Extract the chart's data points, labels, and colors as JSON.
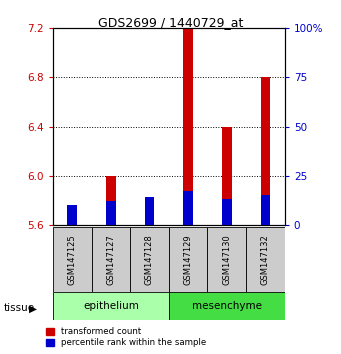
{
  "title": "GDS2699 / 1440729_at",
  "samples": [
    "GSM147125",
    "GSM147127",
    "GSM147128",
    "GSM147129",
    "GSM147130",
    "GSM147132"
  ],
  "transformed_counts": [
    5.69,
    6.0,
    5.72,
    7.2,
    6.4,
    6.8
  ],
  "percentile_ranks": [
    10,
    12,
    14,
    17,
    13,
    15
  ],
  "baseline": 5.6,
  "ylim_left": [
    5.6,
    7.2
  ],
  "ylim_right": [
    0,
    100
  ],
  "yticks_left": [
    5.6,
    6.0,
    6.4,
    6.8,
    7.2
  ],
  "yticks_right": [
    0,
    25,
    50,
    75,
    100
  ],
  "groups": {
    "epithelium": [
      0,
      1,
      2
    ],
    "mesenchyme": [
      3,
      4,
      5
    ]
  },
  "group_color_epi": "#aaffaa",
  "group_color_mes": "#44dd44",
  "bar_color_red": "#cc0000",
  "bar_color_blue": "#0000cc",
  "left_tick_color": "#cc0000",
  "right_tick_color": "#0000cc",
  "gray_color": "#cccccc",
  "bar_width": 0.25
}
